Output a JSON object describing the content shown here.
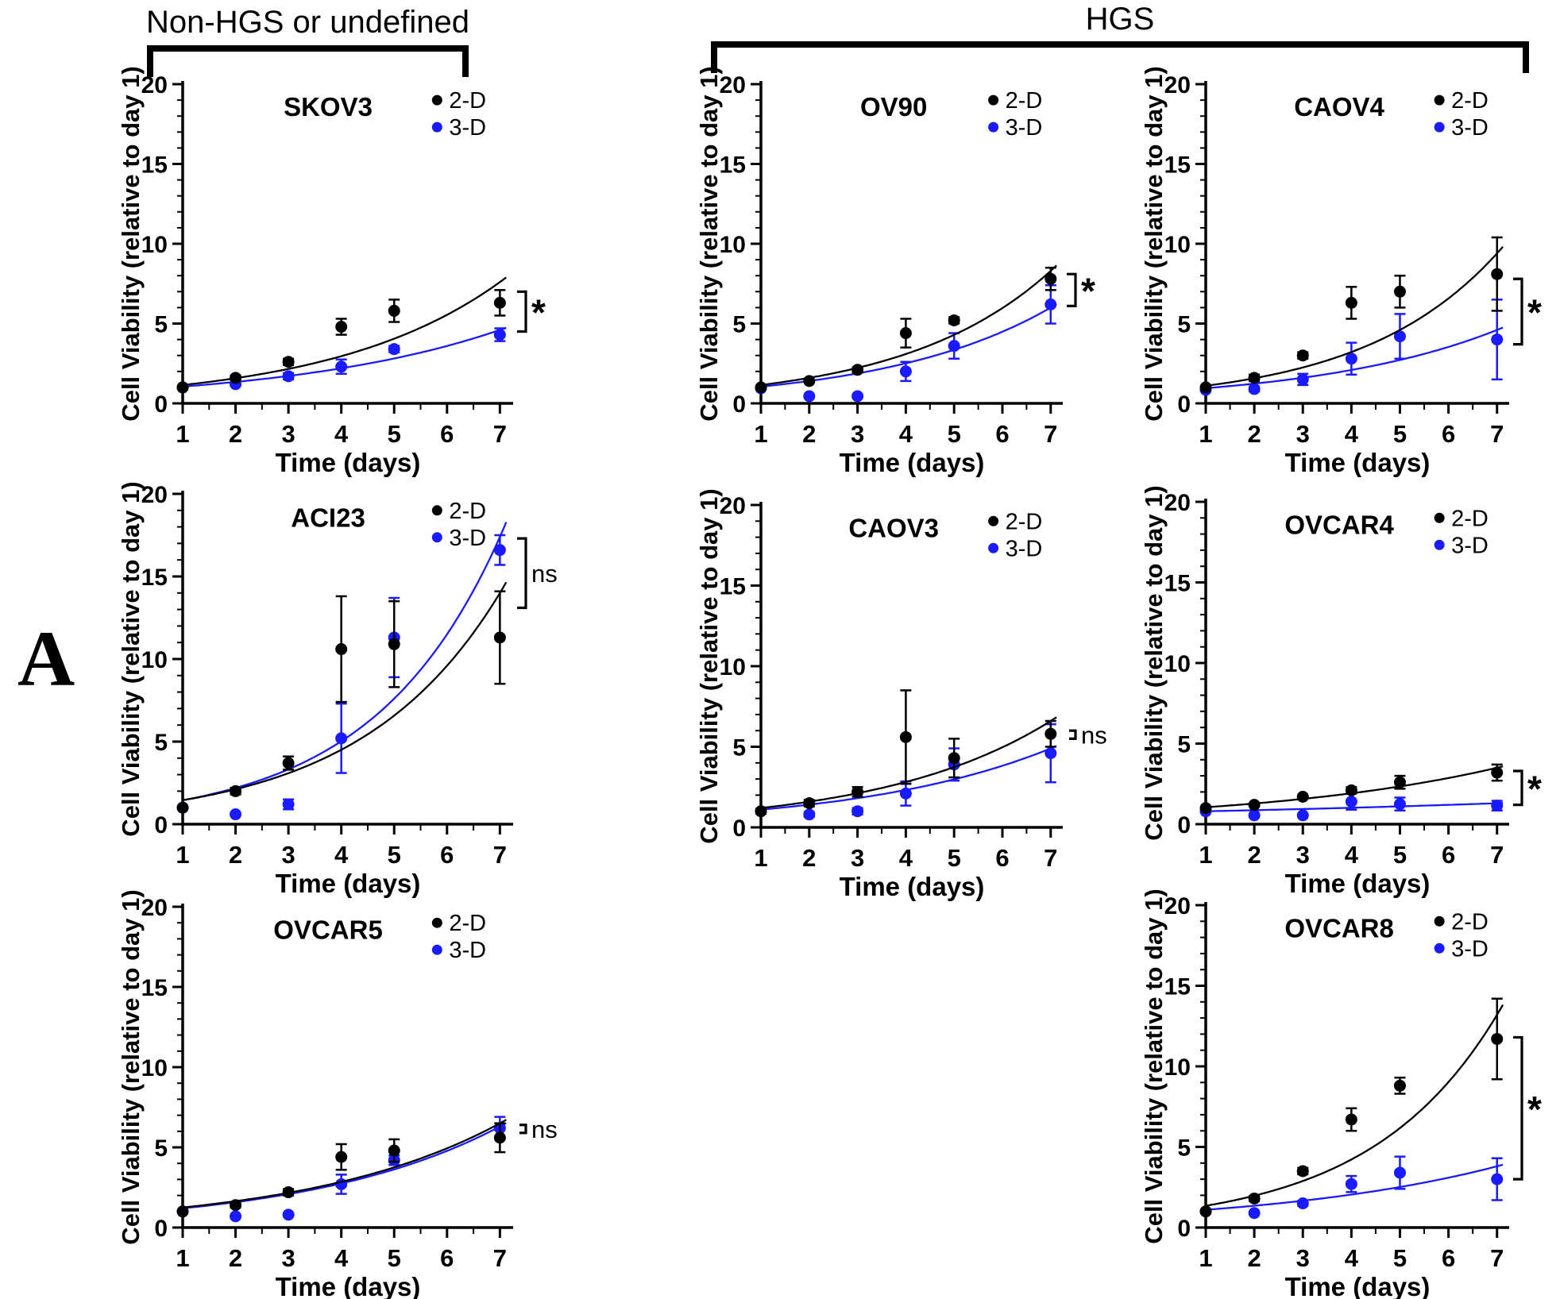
{
  "panel_label": "A",
  "group_headers": [
    {
      "label": "Non-HGS or undefined"
    },
    {
      "label": "HGS"
    }
  ],
  "colors": {
    "series_2d": "#000000",
    "series_3d": "#1a1aff",
    "axis": "#000000"
  },
  "chart_data": {
    "type": "scatter",
    "x_values": [
      1,
      2,
      3,
      4,
      5,
      7
    ],
    "axes": {
      "xlabel": "Time (days)",
      "ylabel": "Cell Viability (relative to day 1)",
      "xlim": [
        1,
        7.25
      ],
      "ylim": [
        0,
        20
      ],
      "xticks": [
        1,
        2,
        3,
        4,
        5,
        6,
        7
      ],
      "yticks": [
        0,
        5,
        10,
        15,
        20
      ],
      "grid": false,
      "legend_position": "top-right-inside"
    },
    "charts": [
      {
        "id": "skov3",
        "title": "SKOV3",
        "group": "Non-HGS or undefined",
        "series": [
          {
            "name": "2-D",
            "color_key": "series_2d",
            "values": [
              1.0,
              1.6,
              2.6,
              4.8,
              5.8,
              6.3
            ],
            "errors": [
              0.1,
              0.15,
              0.2,
              0.5,
              0.7,
              0.8
            ],
            "fit": {
              "start": 1.15,
              "end": 7.6
            }
          },
          {
            "name": "3-D",
            "color_key": "series_3d",
            "values": [
              1.0,
              1.2,
              1.7,
              2.3,
              3.4,
              4.3
            ],
            "errors": [
              0.1,
              0.1,
              0.2,
              0.45,
              0.2,
              0.4
            ],
            "fit": {
              "start": 1.05,
              "end": 4.6
            }
          }
        ],
        "significance": {
          "label": "*",
          "y_top": 7.0,
          "y_bottom": 4.5
        }
      },
      {
        "id": "ov90",
        "title": "OV90",
        "group": "HGS",
        "series": [
          {
            "name": "2-D",
            "color_key": "series_2d",
            "values": [
              1.0,
              1.4,
              2.1,
              4.4,
              5.2,
              7.8
            ],
            "errors": [
              0.1,
              0.1,
              0.15,
              0.9,
              0.2,
              0.7
            ],
            "fit": {
              "start": 1.15,
              "end": 8.3
            }
          },
          {
            "name": "3-D",
            "color_key": "series_3d",
            "values": [
              0.95,
              0.45,
              0.45,
              2.0,
              3.6,
              6.2
            ],
            "errors": [
              0.05,
              0.05,
              0.05,
              0.6,
              0.8,
              1.2
            ],
            "fit": {
              "start": 1.05,
              "end": 6.0
            }
          }
        ],
        "significance": {
          "label": "*",
          "y_top": 8.1,
          "y_bottom": 6.1
        }
      },
      {
        "id": "caov4",
        "title": "CAOV4",
        "group": "HGS",
        "series": [
          {
            "name": "2-D",
            "color_key": "series_2d",
            "values": [
              1.0,
              1.6,
              3.0,
              6.3,
              7.0,
              8.1
            ],
            "errors": [
              0.1,
              0.2,
              0.2,
              1.0,
              1.0,
              2.3
            ],
            "fit": {
              "start": 1.1,
              "end": 9.4
            }
          },
          {
            "name": "3-D",
            "color_key": "series_3d",
            "values": [
              0.85,
              0.9,
              1.5,
              2.8,
              4.2,
              4.0
            ],
            "errors": [
              0.1,
              0.15,
              0.35,
              1.0,
              1.4,
              2.5
            ],
            "fit": {
              "start": 0.95,
              "end": 4.6
            }
          }
        ],
        "significance": {
          "label": "*",
          "y_top": 7.8,
          "y_bottom": 3.7
        }
      },
      {
        "id": "aci23",
        "title": "ACI23",
        "group": "Non-HGS or undefined",
        "series": [
          {
            "name": "2-D",
            "color_key": "series_2d",
            "values": [
              1.0,
              2.0,
              3.7,
              10.6,
              10.9,
              11.3
            ],
            "errors": [
              0.1,
              0.2,
              0.4,
              3.2,
              2.6,
              2.8
            ],
            "fit": {
              "start": 1.45,
              "end": 14.0
            }
          },
          {
            "name": "3-D",
            "color_key": "series_3d",
            "values": [
              1.0,
              0.6,
              1.2,
              5.2,
              11.3,
              16.6
            ],
            "errors": [
              0.05,
              0.1,
              0.3,
              2.1,
              2.4,
              0.9
            ],
            "fit": {
              "start": 1.45,
              "end": 17.4
            }
          }
        ],
        "significance": {
          "label": "ns",
          "y_top": 17.3,
          "y_bottom": 13.1
        }
      },
      {
        "id": "caov3",
        "title": "CAOV3",
        "group": "HGS",
        "series": [
          {
            "name": "2-D",
            "color_key": "series_2d",
            "values": [
              1.0,
              1.5,
              2.2,
              5.6,
              4.3,
              5.8
            ],
            "errors": [
              0.15,
              0.2,
              0.3,
              2.9,
              1.2,
              0.8
            ],
            "fit": {
              "start": 1.2,
              "end": 6.6
            }
          },
          {
            "name": "3-D",
            "color_key": "series_3d",
            "values": [
              1.0,
              0.8,
              1.0,
              2.1,
              3.9,
              4.6
            ],
            "errors": [
              0.1,
              0.15,
              0.2,
              0.75,
              1.0,
              1.8
            ],
            "fit": {
              "start": 1.1,
              "end": 4.9
            }
          }
        ],
        "significance": {
          "label": "ns",
          "y_top": 6.0,
          "y_bottom": 5.5
        }
      },
      {
        "id": "ovcar4",
        "title": "OVCAR4",
        "group": "HGS",
        "series": [
          {
            "name": "2-D",
            "color_key": "series_2d",
            "values": [
              1.0,
              1.2,
              1.7,
              2.1,
              2.6,
              3.2
            ],
            "errors": [
              0.1,
              0.1,
              0.1,
              0.2,
              0.4,
              0.5
            ],
            "fit": {
              "start": 1.05,
              "end": 3.5
            }
          },
          {
            "name": "3-D",
            "color_key": "series_3d",
            "values": [
              0.8,
              0.55,
              0.55,
              1.4,
              1.25,
              1.15
            ],
            "errors": [
              0.05,
              0.05,
              0.05,
              0.5,
              0.4,
              0.3
            ],
            "fit": {
              "start": 0.8,
              "end": 1.3
            }
          }
        ],
        "significance": {
          "label": "*",
          "y_top": 3.3,
          "y_bottom": 1.2
        }
      },
      {
        "id": "ovcar5",
        "title": "OVCAR5",
        "group": "Non-HGS or undefined",
        "series": [
          {
            "name": "2-D",
            "color_key": "series_2d",
            "values": [
              1.0,
              1.4,
              2.2,
              4.4,
              4.8,
              5.6
            ],
            "errors": [
              0.1,
              0.15,
              0.2,
              0.8,
              0.7,
              0.9
            ],
            "fit": {
              "start": 1.25,
              "end": 6.5
            }
          },
          {
            "name": "3-D",
            "color_key": "series_3d",
            "values": [
              1.0,
              0.7,
              0.8,
              2.7,
              4.2,
              6.2
            ],
            "errors": [
              0.05,
              0.1,
              0.1,
              0.6,
              0.3,
              0.7
            ],
            "fit": {
              "start": 1.2,
              "end": 6.3
            }
          }
        ],
        "significance": {
          "label": "ns",
          "y_top": 6.4,
          "y_bottom": 5.9
        }
      },
      {
        "id": "ovcar8",
        "title": "OVCAR8",
        "group": "HGS",
        "series": [
          {
            "name": "2-D",
            "color_key": "series_2d",
            "values": [
              1.0,
              1.8,
              3.5,
              6.7,
              8.8,
              11.7
            ],
            "errors": [
              0.1,
              0.15,
              0.2,
              0.7,
              0.5,
              2.5
            ],
            "fit": {
              "start": 1.35,
              "end": 13.2
            }
          },
          {
            "name": "3-D",
            "color_key": "series_3d",
            "values": [
              1.0,
              0.9,
              1.5,
              2.7,
              3.4,
              3.0
            ],
            "errors": [
              0.1,
              0.1,
              0.15,
              0.5,
              1.0,
              1.3
            ],
            "fit": {
              "start": 1.1,
              "end": 3.8
            }
          }
        ],
        "significance": {
          "label": "*",
          "y_top": 11.8,
          "y_bottom": 3.0
        }
      }
    ]
  }
}
